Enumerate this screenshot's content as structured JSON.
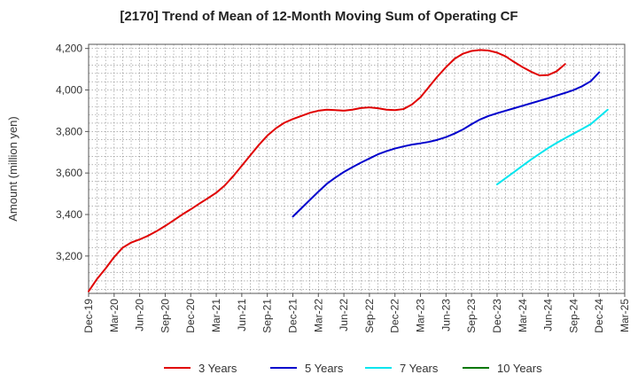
{
  "chart_data": {
    "type": "line",
    "title": "[2170]  Trend of Mean of 12-Month Moving Sum of Operating CF",
    "xlabel": "",
    "ylabel": "Amount (million yen)",
    "ylim": [
      3020,
      4220
    ],
    "yticks": [
      3200,
      3400,
      3600,
      3800,
      4000,
      4200
    ],
    "ytick_labels": [
      "3,200",
      "3,400",
      "3,600",
      "3,800",
      "4,000",
      "4,200"
    ],
    "x_start": "Dec-19",
    "x_end": "Mar-25",
    "xtick_labels": [
      "Dec-19",
      "Mar-20",
      "Jun-20",
      "Sep-20",
      "Dec-20",
      "Mar-21",
      "Jun-21",
      "Sep-21",
      "Dec-21",
      "Mar-22",
      "Jun-22",
      "Sep-22",
      "Dec-22",
      "Mar-23",
      "Jun-23",
      "Sep-23",
      "Dec-23",
      "Mar-24",
      "Jun-24",
      "Sep-24",
      "Dec-24",
      "Mar-25"
    ],
    "grid": true,
    "legend_position": "bottom",
    "series": [
      {
        "name": "3 Years",
        "color": "#e00000",
        "start_index": 0,
        "values": [
          3030,
          3090,
          3140,
          3195,
          3240,
          3265,
          3280,
          3298,
          3320,
          3345,
          3372,
          3400,
          3425,
          3452,
          3478,
          3505,
          3540,
          3585,
          3635,
          3685,
          3735,
          3780,
          3815,
          3842,
          3860,
          3875,
          3890,
          3900,
          3905,
          3903,
          3900,
          3905,
          3913,
          3916,
          3912,
          3905,
          3903,
          3908,
          3930,
          3965,
          4015,
          4065,
          4110,
          4150,
          4175,
          4188,
          4193,
          4190,
          4180,
          4162,
          4135,
          4110,
          4088,
          4070,
          4072,
          4090,
          4125
        ]
      },
      {
        "name": "5 Years",
        "color": "#0000cc",
        "start_index": 24,
        "values": [
          3390,
          3430,
          3470,
          3510,
          3548,
          3578,
          3605,
          3628,
          3650,
          3670,
          3690,
          3705,
          3718,
          3728,
          3737,
          3743,
          3750,
          3760,
          3773,
          3790,
          3810,
          3835,
          3858,
          3875,
          3888,
          3900,
          3912,
          3924,
          3936,
          3948,
          3960,
          3973,
          3986,
          4000,
          4018,
          4042,
          4085
        ]
      },
      {
        "name": "7 Years",
        "color": "#00e5ee",
        "start_index": 48,
        "values": [
          3545,
          3575,
          3605,
          3635,
          3665,
          3693,
          3720,
          3745,
          3768,
          3790,
          3812,
          3835,
          3870,
          3905
        ]
      },
      {
        "name": "10 Years",
        "color": "#007700",
        "start_index": 0,
        "values": []
      }
    ]
  }
}
